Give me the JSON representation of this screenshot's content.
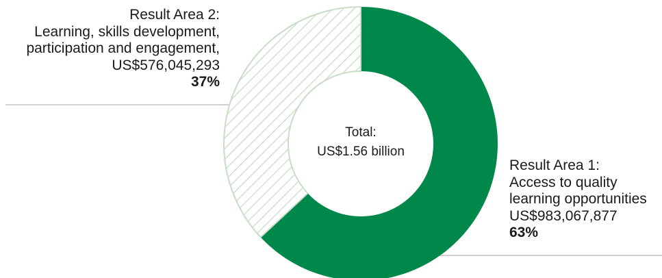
{
  "chart_data": {
    "type": "pie",
    "variant": "donut",
    "center_label": {
      "line1": "Total:",
      "line2": "US$1.56 billion"
    },
    "slices": [
      {
        "title": "Result Area 1:",
        "name_lines": [
          "Access to quality",
          "learning opportunities"
        ],
        "amount": "US$983,067,877",
        "percent_label": "63%",
        "value": 983067877,
        "fill": "solid",
        "color": "#00884a"
      },
      {
        "title": "Result Area 2:",
        "name_lines": [
          "Learning, skills development,",
          "participation and engagement,"
        ],
        "amount": "US$576,045,293",
        "percent_label": "37%",
        "value": 576045293,
        "fill": "hatched",
        "color": "#c8dcc8"
      }
    ],
    "leader_line_color": "#b3b3b3"
  }
}
